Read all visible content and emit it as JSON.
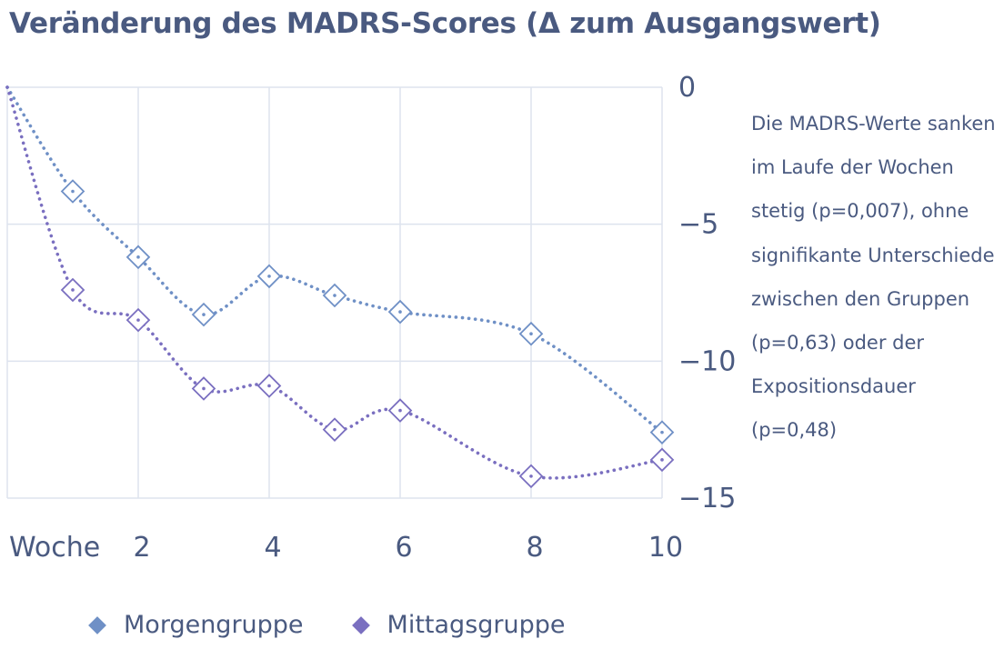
{
  "chart_data": {
    "type": "line",
    "title": "Veränderung des MADRS-Scores (Δ zum Ausgangswert)",
    "xlabel": "Woche",
    "xlim": [
      0,
      10
    ],
    "ylim": [
      -15,
      0
    ],
    "x_ticks": [
      "2",
      "4",
      "6",
      "8",
      "10"
    ],
    "y_ticks": [
      "0",
      "−5",
      "−10",
      "−15"
    ],
    "y_tick_values": [
      0,
      -5,
      -10,
      -15
    ],
    "x_tick_values": [
      2,
      4,
      6,
      8,
      10
    ],
    "grid": true,
    "legend_position": "bottom",
    "series": [
      {
        "name": "Morgengruppe",
        "color": "#6f90c6",
        "x": [
          0,
          1,
          2,
          3,
          4,
          5,
          6,
          8,
          10
        ],
        "y": [
          0,
          -3.8,
          -6.2,
          -8.3,
          -6.9,
          -7.6,
          -8.2,
          -9.0,
          -12.6
        ]
      },
      {
        "name": "Mittagsgruppe",
        "color": "#7a6fc0",
        "x": [
          0,
          1,
          2,
          3,
          4,
          5,
          6,
          8,
          10
        ],
        "y": [
          0,
          -7.4,
          -8.5,
          -11.0,
          -10.9,
          -12.5,
          -11.8,
          -14.2,
          -13.6
        ]
      }
    ],
    "annotation": "Die MADRS-Werte sanken im Laufe der Wochen stetig (p=0,007), ohne signifikante Unterschiede zwischen den Gruppen (p=0,63) oder der Expositionsdauer (p=0,48)"
  }
}
